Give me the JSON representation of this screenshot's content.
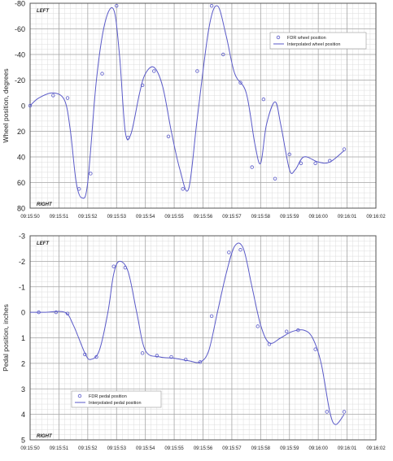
{
  "chart_data": [
    {
      "type": "line",
      "ylabel": "Wheel position, degrees",
      "y_inverted": true,
      "ylim": [
        -80,
        80
      ],
      "yticks": [
        -80,
        -60,
        -40,
        -20,
        0,
        20,
        40,
        60,
        80
      ],
      "xlim": [
        "09:15:50",
        "09:16:02"
      ],
      "xticks": [
        "09:15:50",
        "09:15:51",
        "09:15:52",
        "09:15:53",
        "09:15:54",
        "09:15:55",
        "09:15:56",
        "09:15:57",
        "09:15:58",
        "09:15:59",
        "09:16:00",
        "09:16:01",
        "09:16:02"
      ],
      "grid": true,
      "legend_position": "top-right",
      "corner_labels": {
        "top": "LEFT",
        "bottom": "RIGHT"
      },
      "series": [
        {
          "name": "FDR wheel position",
          "style": "markers",
          "color": "#5a5ac8",
          "x": [
            "09:15:50.0",
            "09:15:50.8",
            "09:15:51.3",
            "09:15:51.7",
            "09:15:52.1",
            "09:15:52.5",
            "09:15:53.0",
            "09:15:53.4",
            "09:15:53.9",
            "09:15:54.3",
            "09:15:54.8",
            "09:15:55.3",
            "09:15:55.8",
            "09:15:56.3",
            "09:15:56.7",
            "09:15:57.3",
            "09:15:57.7",
            "09:15:58.1",
            "09:15:58.5",
            "09:15:59.0",
            "09:15:59.4",
            "09:15:59.9",
            "09:16:00.4",
            "09:16:00.9"
          ],
          "y": [
            0,
            -8,
            -6,
            65,
            53,
            -25,
            -78,
            25,
            -16,
            -27,
            24,
            65,
            -27,
            -78,
            -40,
            -18,
            48,
            -5,
            57,
            38,
            45,
            45,
            43,
            34
          ]
        },
        {
          "name": "Interpolated wheel position",
          "style": "line",
          "color": "#5a5ac8",
          "x": [
            "09:15:50.0",
            "09:15:50.3",
            "09:15:50.8",
            "09:15:51.2",
            "09:15:51.4",
            "09:15:51.6",
            "09:15:51.8",
            "09:15:52.0",
            "09:15:52.3",
            "09:15:52.6",
            "09:15:52.9",
            "09:15:53.1",
            "09:15:53.3",
            "09:15:53.5",
            "09:15:53.8",
            "09:15:54.0",
            "09:15:54.3",
            "09:15:54.6",
            "09:15:54.9",
            "09:15:55.2",
            "09:15:55.5",
            "09:15:55.8",
            "09:15:56.2",
            "09:15:56.5",
            "09:15:56.8",
            "09:15:57.1",
            "09:15:57.5",
            "09:15:57.8",
            "09:15:58.0",
            "09:15:58.2",
            "09:15:58.5",
            "09:15:58.7",
            "09:15:59.0",
            "09:15:59.2",
            "09:15:59.5",
            "09:16:00.0",
            "09:16:00.4",
            "09:16:00.9"
          ],
          "y": [
            0,
            -6,
            -10,
            -4,
            20,
            60,
            72,
            60,
            -20,
            -65,
            -75,
            -40,
            20,
            22,
            -10,
            -25,
            -30,
            -15,
            20,
            50,
            65,
            10,
            -60,
            -78,
            -55,
            -25,
            -10,
            30,
            45,
            15,
            -3,
            15,
            50,
            50,
            40,
            44,
            44,
            35
          ]
        }
      ]
    },
    {
      "type": "line",
      "ylabel": "Pedal position, inches",
      "y_inverted": true,
      "ylim": [
        -3,
        5
      ],
      "yticks": [
        -3,
        -2,
        -1,
        0,
        1,
        2,
        3,
        4,
        5
      ],
      "xlim": [
        "09:15:50",
        "09:16:02"
      ],
      "xticks": [
        "09:15:50",
        "09:15:51",
        "09:15:52",
        "09:15:53",
        "09:15:54",
        "09:15:55",
        "09:15:56",
        "09:15:57",
        "09:15:58",
        "09:15:59",
        "09:16:00",
        "09:16:01",
        "09:16:02"
      ],
      "grid": true,
      "legend_position": "bottom-left",
      "corner_labels": {
        "top": "LEFT",
        "bottom": "RIGHT"
      },
      "series": [
        {
          "name": "FDR pedal position",
          "style": "markers",
          "color": "#5a5ac8",
          "x": [
            "09:15:50.3",
            "09:15:50.9",
            "09:15:51.3",
            "09:15:51.9",
            "09:15:52.3",
            "09:15:52.9",
            "09:15:53.3",
            "09:15:53.9",
            "09:15:54.4",
            "09:15:54.9",
            "09:15:55.4",
            "09:15:55.9",
            "09:15:56.3",
            "09:15:56.9",
            "09:15:57.3",
            "09:15:57.9",
            "09:15:58.3",
            "09:15:58.9",
            "09:15:59.3",
            "09:15:59.9",
            "09:16:00.3",
            "09:16:00.9"
          ],
          "y": [
            0.0,
            0.0,
            0.05,
            1.65,
            1.75,
            -1.8,
            -1.75,
            1.6,
            1.7,
            1.75,
            1.85,
            1.95,
            0.15,
            -2.35,
            -2.45,
            0.55,
            1.25,
            0.75,
            0.7,
            1.45,
            3.9,
            3.9
          ]
        },
        {
          "name": "Interpolated pedal position",
          "style": "line",
          "color": "#5a5ac8",
          "x": [
            "09:15:50.0",
            "09:15:50.5",
            "09:15:51.2",
            "09:15:51.5",
            "09:15:51.9",
            "09:15:52.1",
            "09:15:52.4",
            "09:15:52.7",
            "09:15:52.9",
            "09:15:53.1",
            "09:15:53.4",
            "09:15:53.7",
            "09:15:54.0",
            "09:15:54.5",
            "09:15:55.0",
            "09:15:55.5",
            "09:15:55.9",
            "09:15:56.2",
            "09:15:56.5",
            "09:15:56.8",
            "09:15:57.1",
            "09:15:57.4",
            "09:15:57.7",
            "09:15:58.0",
            "09:15:58.3",
            "09:15:58.7",
            "09:15:59.1",
            "09:15:59.5",
            "09:15:59.8",
            "09:16:00.1",
            "09:16:00.4",
            "09:16:00.6",
            "09:16:00.9"
          ],
          "y": [
            0.0,
            0.0,
            0.0,
            0.5,
            1.6,
            1.85,
            1.5,
            0.0,
            -1.5,
            -2.0,
            -1.6,
            0.0,
            1.5,
            1.75,
            1.8,
            1.9,
            1.95,
            1.5,
            0.0,
            -1.5,
            -2.6,
            -2.5,
            -1.0,
            0.5,
            1.2,
            1.0,
            0.75,
            0.7,
            1.0,
            2.0,
            3.9,
            4.4,
            4.0
          ]
        }
      ]
    }
  ]
}
